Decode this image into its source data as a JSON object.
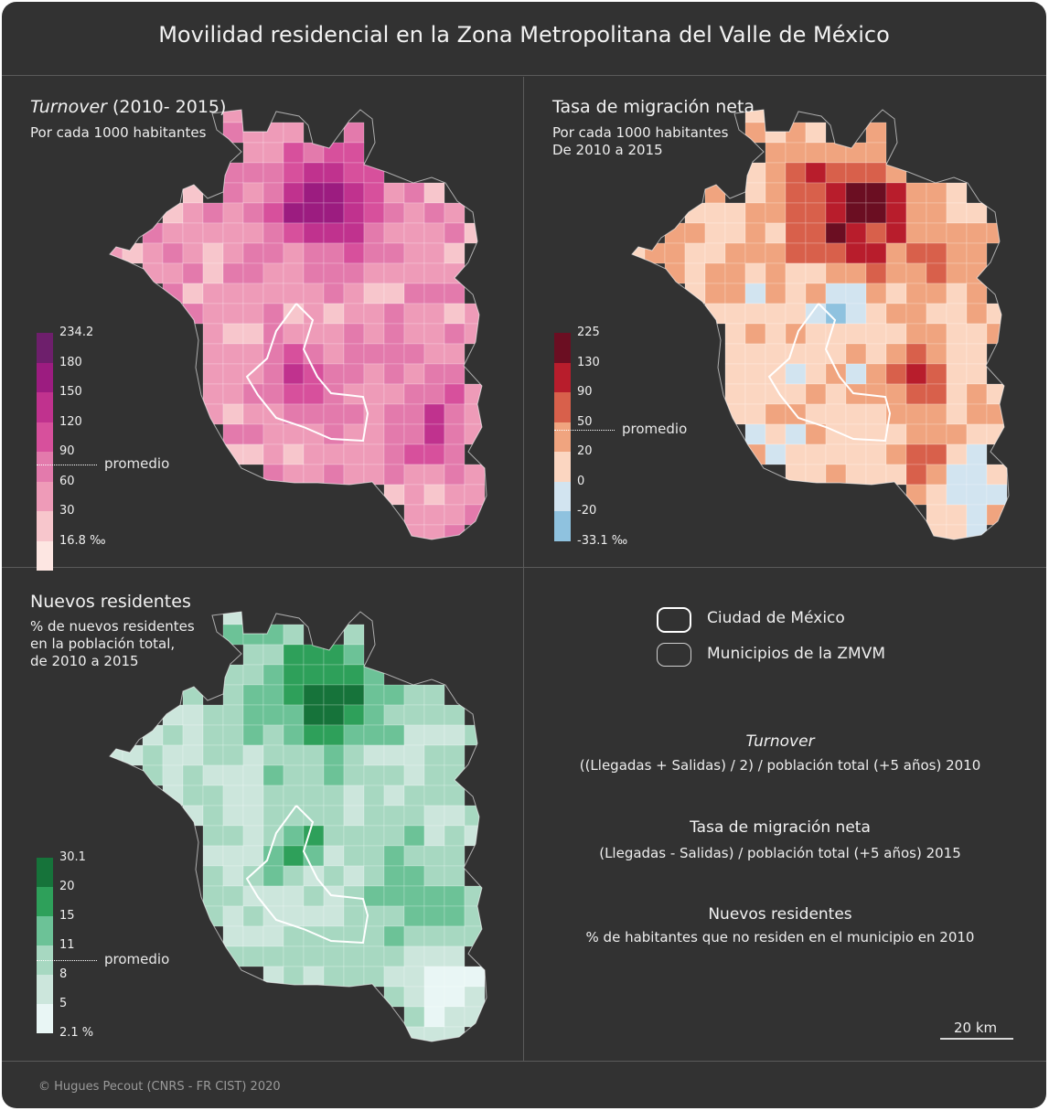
{
  "title": "Movilidad residencial en la Zona Metropolitana del Valle de México",
  "colors": {
    "background": "#323232",
    "divider": "#5a5a5a",
    "text": "#f2f2f2"
  },
  "panels": {
    "turnover": {
      "title_italic": "Turnover",
      "title_rest": " (2010- 2015)",
      "subtitle": [
        "Por cada 1000 habitantes"
      ],
      "legend": {
        "breaks": [
          "234.2",
          "180",
          "150",
          "120",
          "90",
          "60",
          "30",
          "16.8 ‰"
        ],
        "colors": [
          "#6e1f6c",
          "#9c1c80",
          "#c0328e",
          "#d7509c",
          "#e37aac",
          "#ee9bb8",
          "#f7c6cc",
          "#fde6e2"
        ],
        "average_label": "promedio",
        "average_value": 82
      }
    },
    "migration": {
      "title": "Tasa de migración neta",
      "subtitle": [
        "Por cada 1000 habitantes",
        "De 2010 a 2015"
      ],
      "legend": {
        "breaks": [
          "225",
          "130",
          "90",
          "50",
          "20",
          "0",
          "-20",
          "-33.1 ‰"
        ],
        "colors": [
          "#6b0e22",
          "#b81d2c",
          "#d8604b",
          "#f0a47f",
          "#fbd6c1",
          "#d2e4f0",
          "#8fc2df"
        ],
        "average_label": "promedio",
        "average_value": 50
      }
    },
    "new_residents": {
      "title": "Nuevos residentes",
      "subtitle": [
        "% de nuevos residentes",
        "en la población total,",
        "de 2010 a 2015"
      ],
      "legend": {
        "breaks": [
          "30.1",
          "20",
          "15",
          "11",
          "8",
          "5",
          "2.1 %"
        ],
        "colors": [
          "#16733a",
          "#2ea05a",
          "#6cc297",
          "#a7d8c1",
          "#cce6dc",
          "#e9f6f5"
        ],
        "average_label": "promedio",
        "average_value": 10.5
      }
    }
  },
  "key": {
    "items": [
      {
        "label": "Ciudad de México"
      },
      {
        "label": "Municipios de la ZMVM"
      }
    ]
  },
  "definitions": [
    {
      "title": "Turnover",
      "italic": true,
      "text": "((Llegadas + Salidas) / 2) / población total (+5 años) 2010"
    },
    {
      "title": "Tasa de migración neta",
      "italic": false,
      "text": "(Llegadas - Salidas) / población total (+5 años) 2015"
    },
    {
      "title": "Nuevos residentes",
      "italic": false,
      "text": "% de habitantes que no residen en el municipio en 2010"
    }
  ],
  "scalebar": {
    "label": "20 km"
  },
  "credit": "© Hugues Pecout (CNRS - FR CIST) 2020"
}
